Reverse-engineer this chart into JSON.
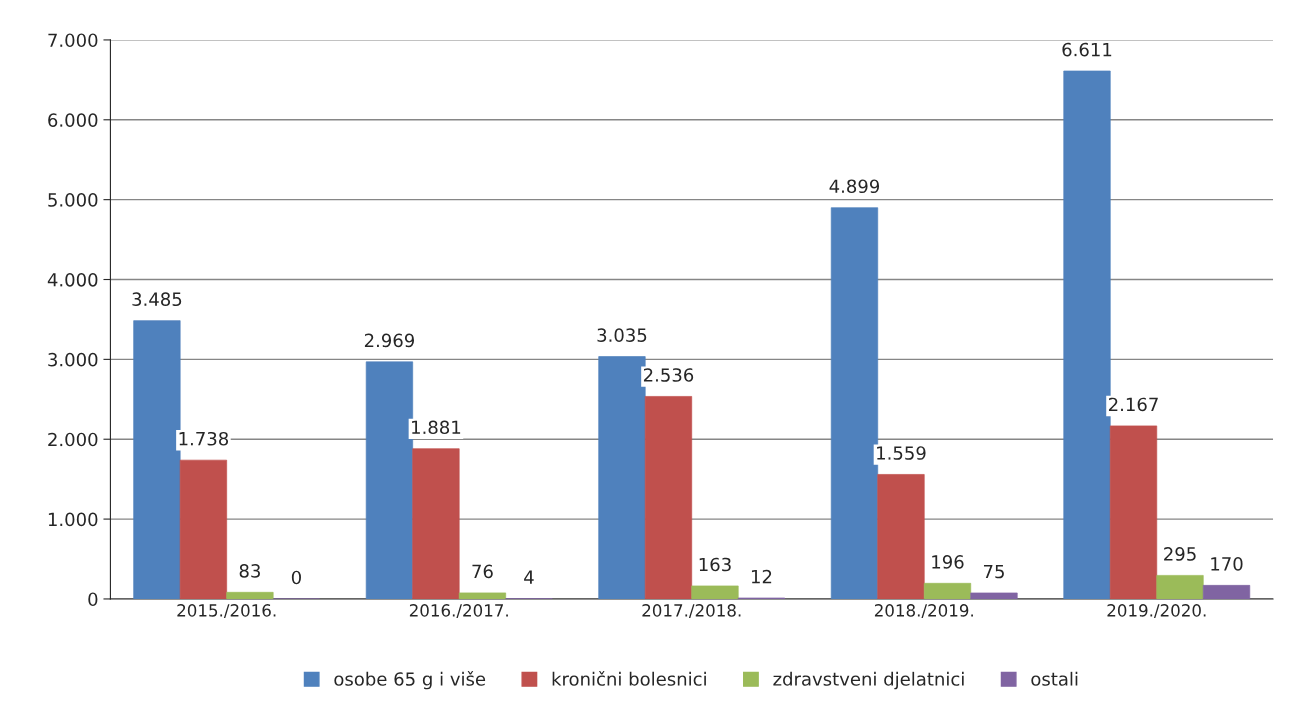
{
  "chart_data": {
    "type": "bar",
    "categories": [
      "2015./2016.",
      "2016./2017.",
      "2017./2018.",
      "2018./2019.",
      "2019./2020."
    ],
    "series": [
      {
        "name": "osobe 65 g i više",
        "color": "#4f81bd",
        "values": [
          3485,
          2969,
          3035,
          4899,
          6611
        ],
        "value_labels": [
          "3.485",
          "2.969",
          "3.035",
          "4.899",
          "6.611"
        ]
      },
      {
        "name": "kronični bolesnici",
        "color": "#c0504d",
        "values": [
          1738,
          1881,
          2536,
          1559,
          2167
        ],
        "value_labels": [
          "1.738",
          "1.881",
          "2.536",
          "1.559",
          "2.167"
        ]
      },
      {
        "name": "zdravstveni djelatnici",
        "color": "#9bbb59",
        "values": [
          83,
          76,
          163,
          196,
          295
        ],
        "value_labels": [
          "83",
          "76",
          "163",
          "196",
          "295"
        ]
      },
      {
        "name": "ostali",
        "color": "#8064a2",
        "values": [
          0,
          4,
          12,
          75,
          170
        ],
        "value_labels": [
          "0",
          "4",
          "12",
          "75",
          "170"
        ]
      }
    ],
    "ylim": [
      0,
      7000
    ],
    "yticks": [
      0,
      {
        "value": 1000,
        "label": "1.000"
      },
      {
        "value": 2000,
        "label": "2.000"
      },
      {
        "value": 3000,
        "label": "3.000"
      },
      {
        "value": 4000,
        "label": "4.000"
      },
      {
        "value": 5000,
        "label": "5.000"
      },
      {
        "value": 6000,
        "label": "6.000"
      },
      {
        "value": 7000,
        "label": "7.000"
      }
    ],
    "grid": "y",
    "legend": "bottom"
  }
}
